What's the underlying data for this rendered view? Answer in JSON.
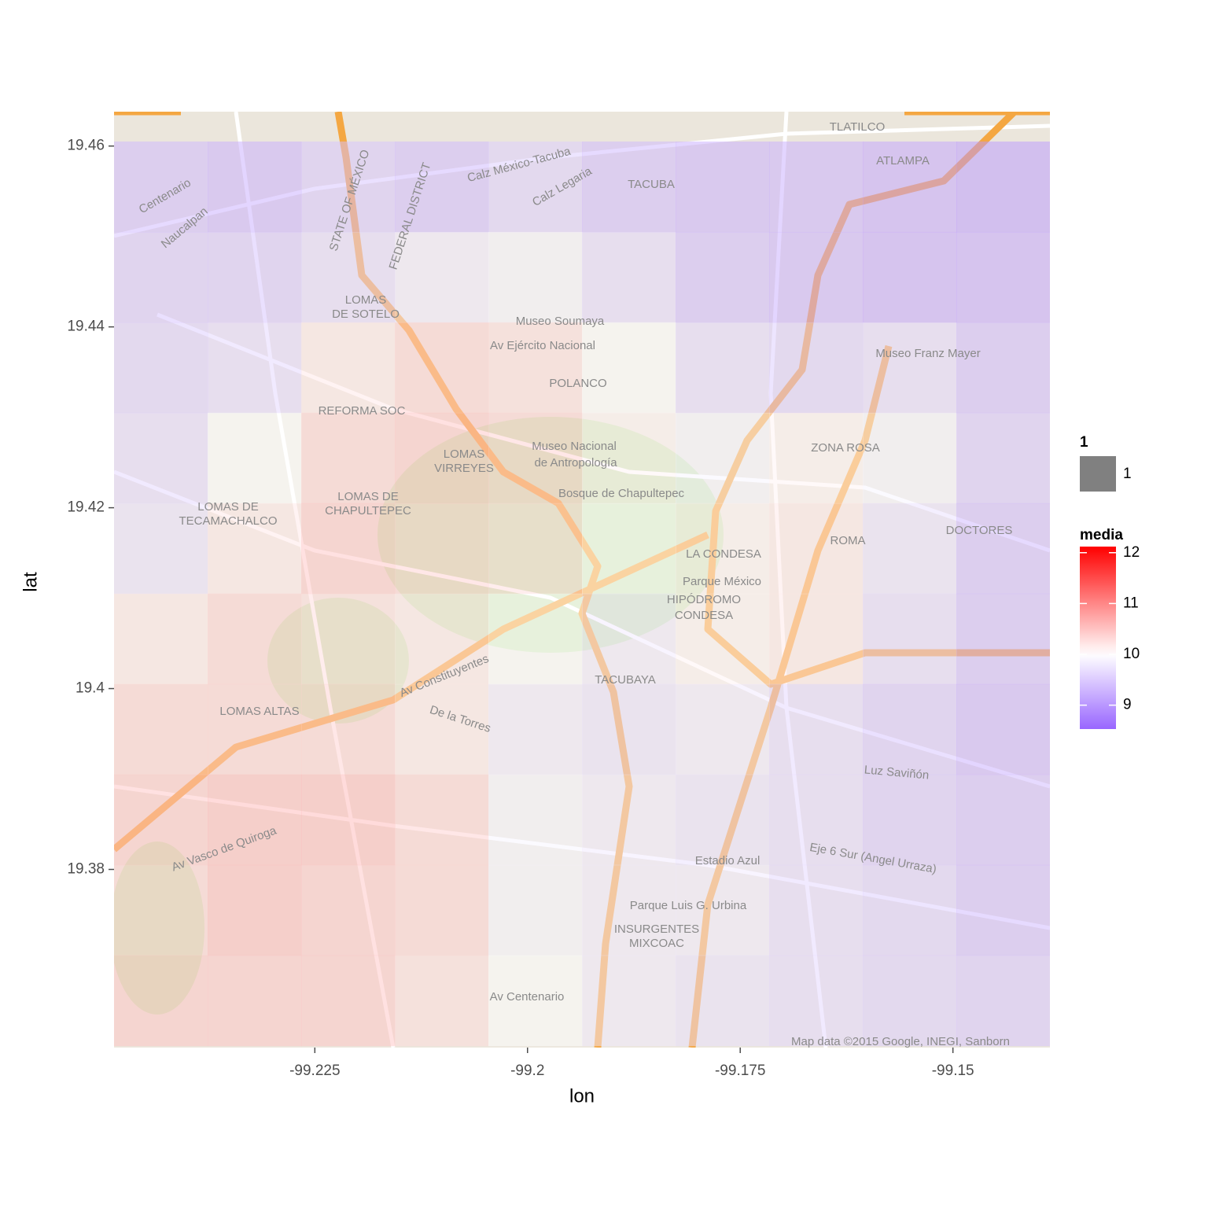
{
  "chart_data": {
    "type": "tile-map",
    "x_label": "lon",
    "y_label": "lat",
    "xlim": [
      -99.2486,
      -99.1386
    ],
    "ylim": [
      19.3603,
      19.4638
    ],
    "xticks": [
      -99.225,
      -99.2,
      -99.175,
      -99.15
    ],
    "yticks": [
      19.46,
      19.44,
      19.42,
      19.4,
      19.38
    ],
    "tiles": {
      "lon": [
        -99.2431,
        -99.2321,
        -99.2211,
        -99.2101,
        -99.1991,
        -99.1881,
        -99.1771,
        -99.1661,
        -99.1551,
        -99.1441
      ],
      "lat": [
        19.4555,
        19.4455,
        19.4355,
        19.4255,
        19.4155,
        19.4055,
        19.3955,
        19.3855,
        19.3755,
        19.3655
      ],
      "media": [
        [
          9.3,
          9.2,
          9.4,
          9.3,
          9.5,
          9.3,
          9.2,
          9.2,
          9.1,
          9.0
        ],
        [
          9.4,
          9.4,
          9.6,
          9.8,
          9.9,
          9.6,
          9.3,
          9.2,
          9.1,
          9.1
        ],
        [
          9.5,
          9.6,
          10.2,
          10.4,
          10.3,
          10.0,
          9.6,
          9.5,
          9.6,
          9.3
        ],
        [
          9.6,
          10.0,
          10.4,
          10.5,
          10.4,
          10.1,
          9.9,
          10.1,
          9.9,
          9.4
        ],
        [
          9.7,
          10.2,
          10.5,
          10.4,
          10.3,
          10.0,
          10.1,
          10.2,
          9.7,
          9.3
        ],
        [
          10.2,
          10.4,
          10.3,
          10.2,
          10.0,
          9.8,
          10.1,
          10.2,
          9.6,
          9.3
        ],
        [
          10.4,
          10.4,
          10.4,
          10.2,
          9.8,
          9.7,
          9.8,
          9.6,
          9.4,
          9.2
        ],
        [
          10.5,
          10.6,
          10.6,
          10.4,
          9.9,
          9.8,
          9.7,
          9.6,
          9.4,
          9.3
        ],
        [
          10.4,
          10.6,
          10.5,
          10.4,
          9.9,
          9.8,
          9.8,
          9.6,
          9.5,
          9.3
        ],
        [
          10.5,
          10.5,
          10.5,
          10.3,
          10.0,
          9.8,
          9.7,
          9.6,
          9.5,
          9.4
        ]
      ]
    },
    "fill_legend": {
      "title": "media",
      "lim": [
        8.53,
        12.12
      ],
      "ticks": [
        12,
        11,
        10,
        9
      ],
      "midpoint": 10,
      "color_low": "#9966ff",
      "color_mid": "#ffffff",
      "color_high": "#ff0000"
    },
    "group_legend": {
      "title": "1",
      "labels": [
        "1"
      ],
      "color": "#808080"
    },
    "map_labels": [
      "TLATILCO",
      "ATLAMPA",
      "TACUBA",
      "Calz México-Tacuba",
      "Calz Legaria",
      "Centenario",
      "Naucalpan",
      "STATE OF MÉXICO",
      "FEDERAL DISTRICT",
      "LOMAS",
      "DE SOTELO",
      "Museo Soumaya",
      "Av Ejército Nacional",
      "POLANCO",
      "REFORMA SOC",
      "Museo Nacional",
      "de Antropología",
      "LOMAS",
      "VIRREYES",
      "Bosque de Chapultepec",
      "LOMAS DE",
      "CHAPULTEPEC",
      "LOMAS DE",
      "TECAMACHALCO",
      "Museo Franz Mayer",
      "ZONA ROSA",
      "DOCTORES",
      "ROMA",
      "LA CONDESA",
      "Parque México",
      "HIPÓDROMO",
      "CONDESA",
      "TACUBAYA",
      "LOMAS ALTAS",
      "De la Torres",
      "Av Constituyentes",
      "Av Vasco de Quiroga",
      "Estadio Azul",
      "Eje 6 Sur (Angel Urraza)",
      "Parque Luis G. Urbina",
      "INSURGENTES",
      "MIXCOAC",
      "Av Centenario",
      "Luz Saviñón",
      "Map data ©2015 Google, INEGI, Sanborn"
    ]
  }
}
